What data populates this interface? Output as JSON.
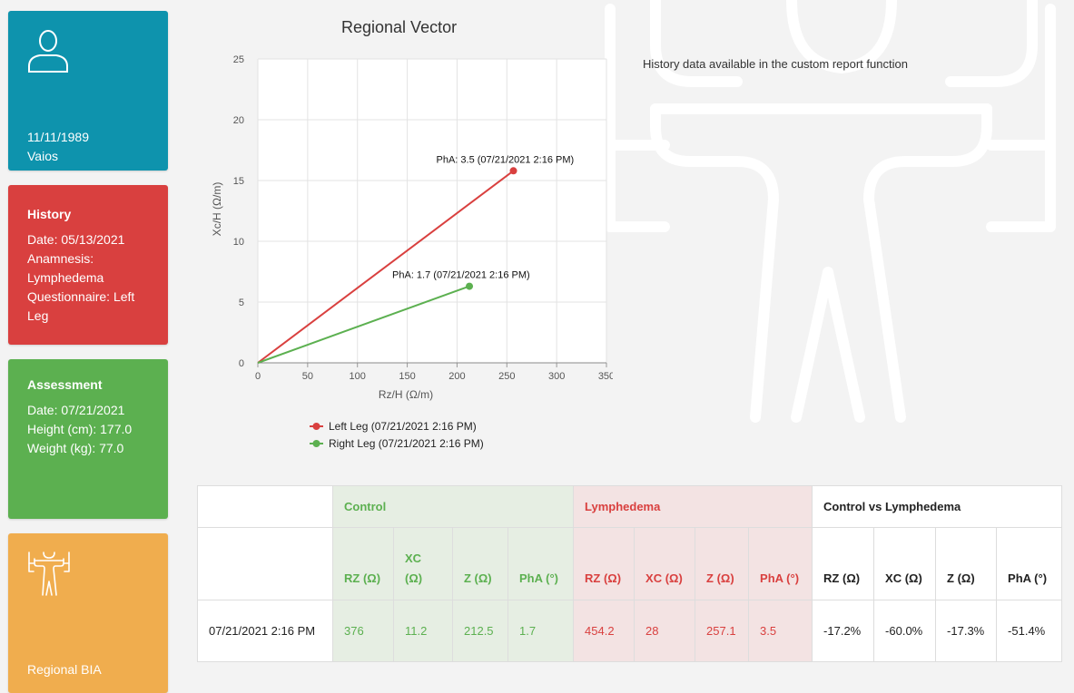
{
  "profile_card": {
    "dob": "11/11/1989",
    "name": "Vaios"
  },
  "history_card": {
    "title": "History",
    "date": "Date: 05/13/2021",
    "anamnesis": "Anamnesis: Lymphedema",
    "questionnaire": "Questionnaire: Left Leg"
  },
  "assessment_card": {
    "title": "Assessment",
    "date": "Date: 07/21/2021",
    "height": "Height (cm): 177.0",
    "weight": "Weight (kg): 77.0"
  },
  "regional_card": {
    "label": "Regional BIA"
  },
  "history_note": "History data available in the custom report function",
  "chart_data": {
    "type": "line",
    "title": "Regional Vector",
    "xlabel": "Rz/H (Ω/m)",
    "ylabel": "Xc/H (Ω/m)",
    "xlim": [
      0,
      350
    ],
    "ylim": [
      0,
      25
    ],
    "xticks": [
      0,
      50,
      100,
      150,
      200,
      250,
      300,
      350
    ],
    "yticks": [
      0,
      5,
      10,
      15,
      20,
      25
    ],
    "grid": true,
    "legend_position": "bottom-left",
    "series": [
      {
        "name": "Left Leg (07/21/2021 2:16 PM)",
        "color": "#d9403f",
        "points": [
          [
            0,
            0
          ],
          [
            256.6,
            15.8
          ]
        ],
        "label": "PhA: 3.5 (07/21/2021 2:16 PM)"
      },
      {
        "name": "Right Leg (07/21/2021 2:16 PM)",
        "color": "#5cb050",
        "points": [
          [
            0,
            0
          ],
          [
            212.4,
            6.3
          ]
        ],
        "label": "PhA: 1.7 (07/21/2021 2:16 PM)"
      }
    ]
  },
  "table": {
    "groups": {
      "control": "Control",
      "lymphedema": "Lymphedema",
      "comparison": "Control vs Lymphedema"
    },
    "control_headers": [
      "RZ (Ω)",
      "XC (Ω)",
      "Z (Ω)",
      "PhA (°)"
    ],
    "lymphedema_headers": [
      "RZ (Ω)",
      "XC (Ω)",
      "Z (Ω)",
      "PhA (°)"
    ],
    "comparison_headers": [
      "RZ (Ω)",
      "XC (Ω)",
      "Z (Ω)",
      "PhA (°)"
    ],
    "row": {
      "date": "07/21/2021 2:16 PM",
      "control": [
        "376",
        "11.2",
        "212.5",
        "1.7"
      ],
      "lymphedema": [
        "454.2",
        "28",
        "257.1",
        "3.5"
      ],
      "comparison": [
        "-17.2%",
        "-60.0%",
        "-17.3%",
        "-51.4%"
      ]
    }
  }
}
